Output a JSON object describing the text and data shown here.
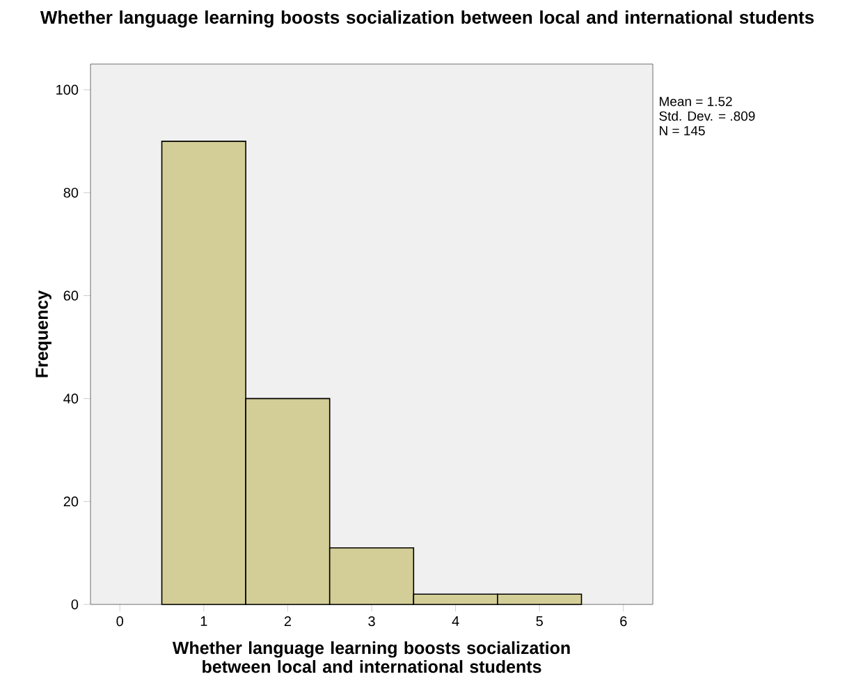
{
  "chart_data": {
    "type": "histogram",
    "title": "Whether language learning boosts socialization between local and international students",
    "xlabel": "Whether language learning boosts socialization between local and international students",
    "ylabel": "Frequency",
    "bins": [
      0.5,
      1.5,
      2.5,
      3.5,
      4.5,
      5.5
    ],
    "values": [
      90,
      40,
      11,
      2,
      2
    ],
    "color": "#d3ce97",
    "xlim": [
      -0.35,
      6.35
    ],
    "xticks": [
      0,
      1,
      2,
      3,
      4,
      5,
      6
    ],
    "ylim": [
      0,
      105
    ],
    "yticks": [
      0,
      20,
      40,
      60,
      80,
      100
    ],
    "annotations": [
      "Mean = 1.52",
      "Std. Dev. = .809",
      "N = 145"
    ]
  }
}
